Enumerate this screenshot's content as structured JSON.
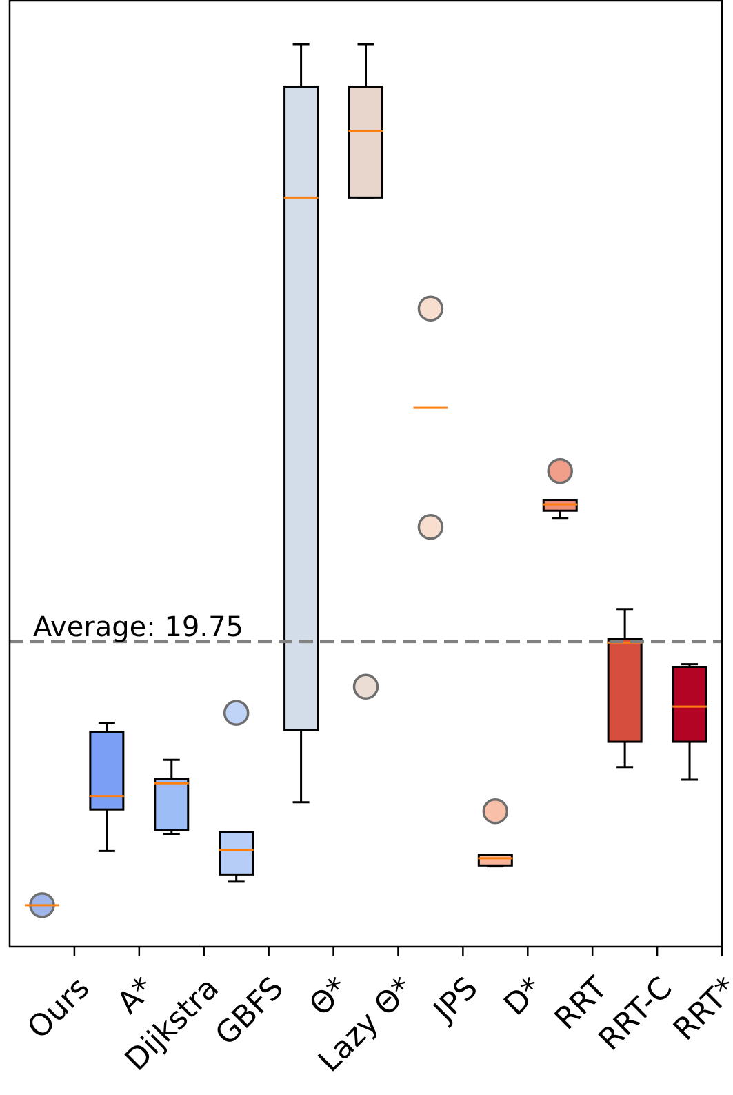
{
  "chart_data": {
    "type": "box",
    "title": "",
    "xlabel": "",
    "ylabel": "",
    "y_axis_ticks_shown": false,
    "grid": false,
    "legend": "none",
    "ylim": [
      0,
      100
    ],
    "categories": [
      "Ours",
      "A*",
      "Dijkstra",
      "GBFS",
      "Θ*",
      "Lazy Θ*",
      "JPS",
      "D*",
      "RRT",
      "RRT-C",
      "RRT*"
    ],
    "boxes": [
      {
        "name": "Ours",
        "color": "#8fa9e8",
        "box": false,
        "median": 4.6,
        "fliers": [
          4.6
        ]
      },
      {
        "name": "A*",
        "color": "#7b9ff5",
        "box": true,
        "whislo": 10.6,
        "q1": 15.2,
        "median": 16.7,
        "q3": 23.8,
        "whishi": 24.8,
        "fliers": []
      },
      {
        "name": "Dijkstra",
        "color": "#9dbdf7",
        "box": true,
        "whislo": 12.5,
        "q1": 12.9,
        "median": 18.1,
        "q3": 18.6,
        "whishi": 20.7,
        "fliers": []
      },
      {
        "name": "GBFS",
        "color": "#b5cdf7",
        "box": true,
        "whislo": 7.2,
        "q1": 8.0,
        "median": 10.7,
        "q3": 12.7,
        "whishi": 12.7,
        "fliers": [
          25.9
        ]
      },
      {
        "name": "Θ*",
        "color": "#d3dde9",
        "box": true,
        "whislo": 16.0,
        "q1": 24.0,
        "median": 83.0,
        "q3": 95.3,
        "whishi": 100.0,
        "fliers": []
      },
      {
        "name": "Lazy Θ*",
        "color": "#e8d6cd",
        "box": true,
        "whislo": 83.0,
        "q1": 83.0,
        "median": 90.4,
        "q3": 95.3,
        "whishi": 100.0,
        "fliers": [
          28.8
        ]
      },
      {
        "name": "JPS",
        "color": "#f6d8c6",
        "box": false,
        "median": 59.7,
        "fliers": [
          70.7,
          46.5
        ]
      },
      {
        "name": "D*",
        "color": "#f7b59a",
        "box": true,
        "whislo": 8.9,
        "q1": 9.0,
        "median": 9.8,
        "q3": 10.2,
        "whishi": 10.2,
        "fliers": [
          15.0
        ]
      },
      {
        "name": "RRT",
        "color": "#ee8e75",
        "box": true,
        "whislo": 47.5,
        "q1": 48.3,
        "median": 49.0,
        "q3": 49.5,
        "whishi": 49.5,
        "fliers": [
          52.7
        ]
      },
      {
        "name": "RRT-C",
        "color": "#d54e3e",
        "box": true,
        "whislo": 19.9,
        "q1": 22.7,
        "median": 33.7,
        "q3": 34.1,
        "whishi": 37.4,
        "fliers": []
      },
      {
        "name": "RRT*",
        "color": "#b40426",
        "box": true,
        "whislo": 18.5,
        "q1": 22.7,
        "median": 26.6,
        "q3": 31.0,
        "whishi": 31.3,
        "fliers": []
      }
    ],
    "reference_line": {
      "label": "Average: 19.75",
      "value": 33.8,
      "color": "#808080",
      "style": "dashed"
    },
    "median_color": "#ff7f0e"
  }
}
